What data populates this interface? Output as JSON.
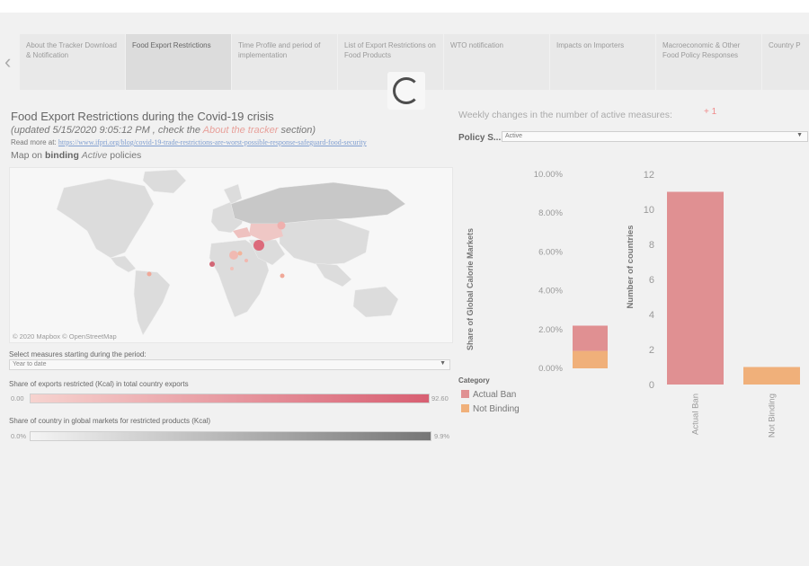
{
  "tabs": [
    {
      "label": "About the Tracker Download & Notification",
      "active": false
    },
    {
      "label": "Food Export Restrictions",
      "active": true
    },
    {
      "label": "Time Profile and period of implementation",
      "active": false
    },
    {
      "label": "List of Export Restrictions on Food Products",
      "active": false
    },
    {
      "label": "WTO notification",
      "active": false
    },
    {
      "label": "Impacts on Importers",
      "active": false
    },
    {
      "label": "Macroeconomic & Other Food Policy Responses",
      "active": false
    },
    {
      "label": "Country P",
      "active": false
    }
  ],
  "nav": {
    "prev_icon": "‹",
    "next_icon": "›"
  },
  "header": {
    "title": "Food Export Restrictions during the Covid-19 crisis",
    "subtitle_prefix": "(updated 5/15/2020 9:05:12 PM , check the ",
    "subtitle_link": "About the tracker",
    "subtitle_suffix": " section)",
    "readmore_label": "Read more at: ",
    "readmore_url": "https://www.ifpri.org/blog/covid-19-trade-restrictions-are-worst-possible-response-safeguard-food-security",
    "map_caption_pre": "Map on ",
    "map_caption_bold": "binding",
    "map_caption_ital": "Active",
    "map_caption_post": " policies"
  },
  "map": {
    "attribution": "© 2020 Mapbox  © OpenStreetMap"
  },
  "period_filter": {
    "label": "Select measures starting during the period:",
    "value": "Year to date"
  },
  "legend_exports": {
    "label": "Share of exports restricted (Kcal) in total country exports",
    "min": "0.00",
    "max": "92.60",
    "color_start": "#f6d3cf",
    "color_end": "#d85f72"
  },
  "legend_global": {
    "label": "Share of country in global markets for restricted products (Kcal)",
    "min": "0.0%",
    "max": "9.9%",
    "color_start": "#f4f4f4",
    "color_end": "#767676"
  },
  "weekly": {
    "label": "Weekly changes in the number of active measures:",
    "value": "+ 1"
  },
  "policy_filter": {
    "label": "Policy S...",
    "value": "Active"
  },
  "category_legend": {
    "title": "Category",
    "items": [
      {
        "label": "Actual Ban",
        "color": "#e09092"
      },
      {
        "label": "Not Binding",
        "color": "#f0b07a"
      }
    ]
  },
  "chart_data": [
    {
      "type": "bar",
      "ylabel": "Share of Global Calorie Markets",
      "ylim": [
        0,
        10
      ],
      "ticks": [
        "0.00%",
        "2.00%",
        "4.00%",
        "6.00%",
        "8.00%",
        "10.00%"
      ],
      "stacked": true,
      "series": [
        {
          "name": "Not Binding",
          "values": [
            0.9
          ],
          "color": "#f0b07a"
        },
        {
          "name": "Actual Ban",
          "values": [
            1.3
          ],
          "color": "#e09092"
        }
      ]
    },
    {
      "type": "bar",
      "ylabel": "Number of countries",
      "ylim": [
        0,
        12
      ],
      "ticks": [
        "0",
        "2",
        "4",
        "6",
        "8",
        "10",
        "12"
      ],
      "categories": [
        "Actual Ban",
        "Not Binding"
      ],
      "values": [
        11,
        1
      ],
      "colors": [
        "#e09092",
        "#f0b07a"
      ]
    }
  ]
}
